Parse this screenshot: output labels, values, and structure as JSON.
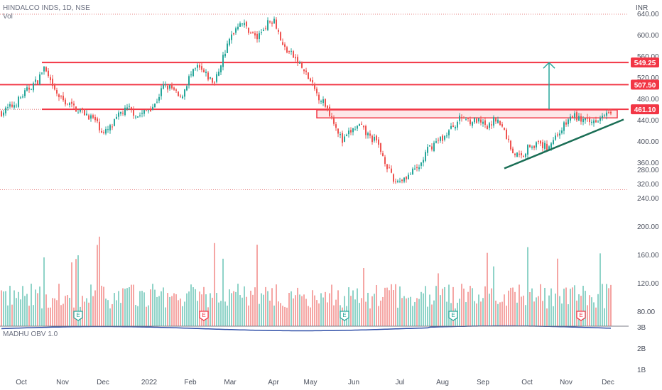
{
  "header": {
    "symbol_line": "HINDALCO INDS, 1D, NSE",
    "vol_label": "Vol"
  },
  "indicator": {
    "label": "MADHU OBV 1.0"
  },
  "chart_data": {
    "type": "candlestick",
    "currency": "INR",
    "price_axis": {
      "min": 300,
      "max": 640,
      "ticks": [
        "320.00",
        "360.00",
        "400.00",
        "440.00",
        "480.00",
        "520.00",
        "560.00",
        "600.00",
        "640.00"
      ]
    },
    "volume_axis_ticks": [
      "80.00",
      "120.00",
      "160.00",
      "200.00",
      "240.00",
      "280.00"
    ],
    "obv_axis_ticks": [
      "3B",
      "2B",
      "1B"
    ],
    "month_labels": [
      "Oct",
      "Nov",
      "Dec",
      "2022",
      "Feb",
      "Mar",
      "Apr",
      "May",
      "Jun",
      "Jul",
      "Aug",
      "Sep",
      "Oct",
      "Nov",
      "Dec"
    ],
    "price_anchors": [
      [
        0,
        455
      ],
      [
        6,
        470
      ],
      [
        14,
        505
      ],
      [
        17,
        515
      ],
      [
        20,
        540
      ],
      [
        24,
        500
      ],
      [
        28,
        480
      ],
      [
        32,
        470
      ],
      [
        36,
        460
      ],
      [
        40,
        452
      ],
      [
        44,
        440
      ],
      [
        48,
        415
      ],
      [
        52,
        430
      ],
      [
        56,
        455
      ],
      [
        60,
        462
      ],
      [
        64,
        448
      ],
      [
        68,
        458
      ],
      [
        72,
        470
      ],
      [
        76,
        505
      ],
      [
        80,
        500
      ],
      [
        84,
        480
      ],
      [
        88,
        520
      ],
      [
        92,
        540
      ],
      [
        96,
        525
      ],
      [
        100,
        510
      ],
      [
        104,
        560
      ],
      [
        108,
        600
      ],
      [
        112,
        628
      ],
      [
        116,
        610
      ],
      [
        120,
        595
      ],
      [
        124,
        620
      ],
      [
        128,
        632
      ],
      [
        132,
        580
      ],
      [
        136,
        565
      ],
      [
        140,
        545
      ],
      [
        144,
        520
      ],
      [
        148,
        490
      ],
      [
        152,
        470
      ],
      [
        156,
        440
      ],
      [
        160,
        400
      ],
      [
        164,
        420
      ],
      [
        168,
        430
      ],
      [
        172,
        412
      ],
      [
        176,
        400
      ],
      [
        180,
        365
      ],
      [
        184,
        325
      ],
      [
        188,
        330
      ],
      [
        192,
        340
      ],
      [
        196,
        352
      ],
      [
        200,
        385
      ],
      [
        204,
        400
      ],
      [
        208,
        410
      ],
      [
        212,
        430
      ],
      [
        216,
        447
      ],
      [
        220,
        440
      ],
      [
        224,
        438
      ],
      [
        228,
        425
      ],
      [
        232,
        445
      ],
      [
        236,
        420
      ],
      [
        240,
        380
      ],
      [
        244,
        372
      ],
      [
        248,
        395
      ],
      [
        252,
        395
      ],
      [
        256,
        390
      ],
      [
        260,
        410
      ],
      [
        264,
        430
      ],
      [
        268,
        450
      ],
      [
        272,
        442
      ],
      [
        276,
        435
      ],
      [
        280,
        445
      ],
      [
        284,
        460
      ]
    ],
    "levels": [
      {
        "price": 549.25,
        "label": "549.25",
        "color": "#f23645"
      },
      {
        "price": 507.5,
        "label": "507.50",
        "color": "#f23645"
      },
      {
        "price": 461.1,
        "label": "461.10",
        "color": "#f23645"
      }
    ],
    "dotted_levels": [
      640,
      461.1,
      310
    ],
    "zone": {
      "from_bar": 148,
      "to_bar": 289,
      "low": 445,
      "high": 460,
      "color": "#f23645"
    },
    "trendline": {
      "from_bar": 236,
      "from_price": 350,
      "to_bar": 292,
      "to_price": 442,
      "color": "#1a6e55"
    },
    "arrow": {
      "bar": 257,
      "from_price": 461,
      "to_price": 549,
      "color": "#26a69a"
    },
    "earnings_markers": [
      {
        "bar": 36,
        "color": "#26a69a"
      },
      {
        "bar": 95,
        "color": "#f23645"
      },
      {
        "bar": 161,
        "color": "#26a69a"
      },
      {
        "bar": 212,
        "color": "#26a69a"
      },
      {
        "bar": 272,
        "color": "#f23645"
      }
    ],
    "earnings_glyph": "E",
    "colors": {
      "up": "#26a69a",
      "down": "#ef5350",
      "vol_up": "#8fd3c8",
      "vol_down": "#f5a6a4",
      "obv": "#3150a8"
    }
  }
}
